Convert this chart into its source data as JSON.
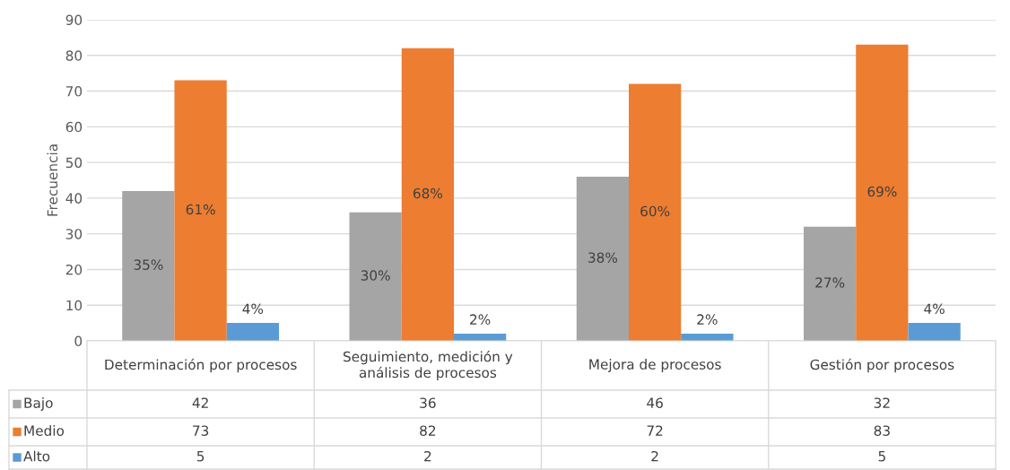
{
  "chart_data": {
    "type": "bar",
    "ylabel": "Frecuencia",
    "categories": [
      "Determinación por procesos",
      "Seguimiento, medición y\nanálisis de procesos",
      "Mejora de procesos",
      "Gestión por procesos"
    ],
    "series": [
      {
        "name": "Bajo",
        "color": "#a5a5a5",
        "values": [
          42,
          36,
          46,
          32
        ]
      },
      {
        "name": "Medio",
        "color": "#ed7d31",
        "values": [
          73,
          82,
          72,
          83
        ]
      },
      {
        "name": "Alto",
        "color": "#5b9bd5",
        "values": [
          5,
          2,
          2,
          5
        ]
      }
    ],
    "annotations": [
      "35%",
      "30%",
      "38%",
      "27%",
      "61%",
      "68%",
      "60%",
      "69%",
      "4%",
      "2%",
      "2%",
      "4%"
    ],
    "ylim": [
      0,
      90
    ],
    "yticks": [
      0,
      10,
      20,
      30,
      40,
      50,
      60,
      70,
      80,
      90
    ],
    "grid": "y",
    "legend": "bottom",
    "data_labels": true
  }
}
